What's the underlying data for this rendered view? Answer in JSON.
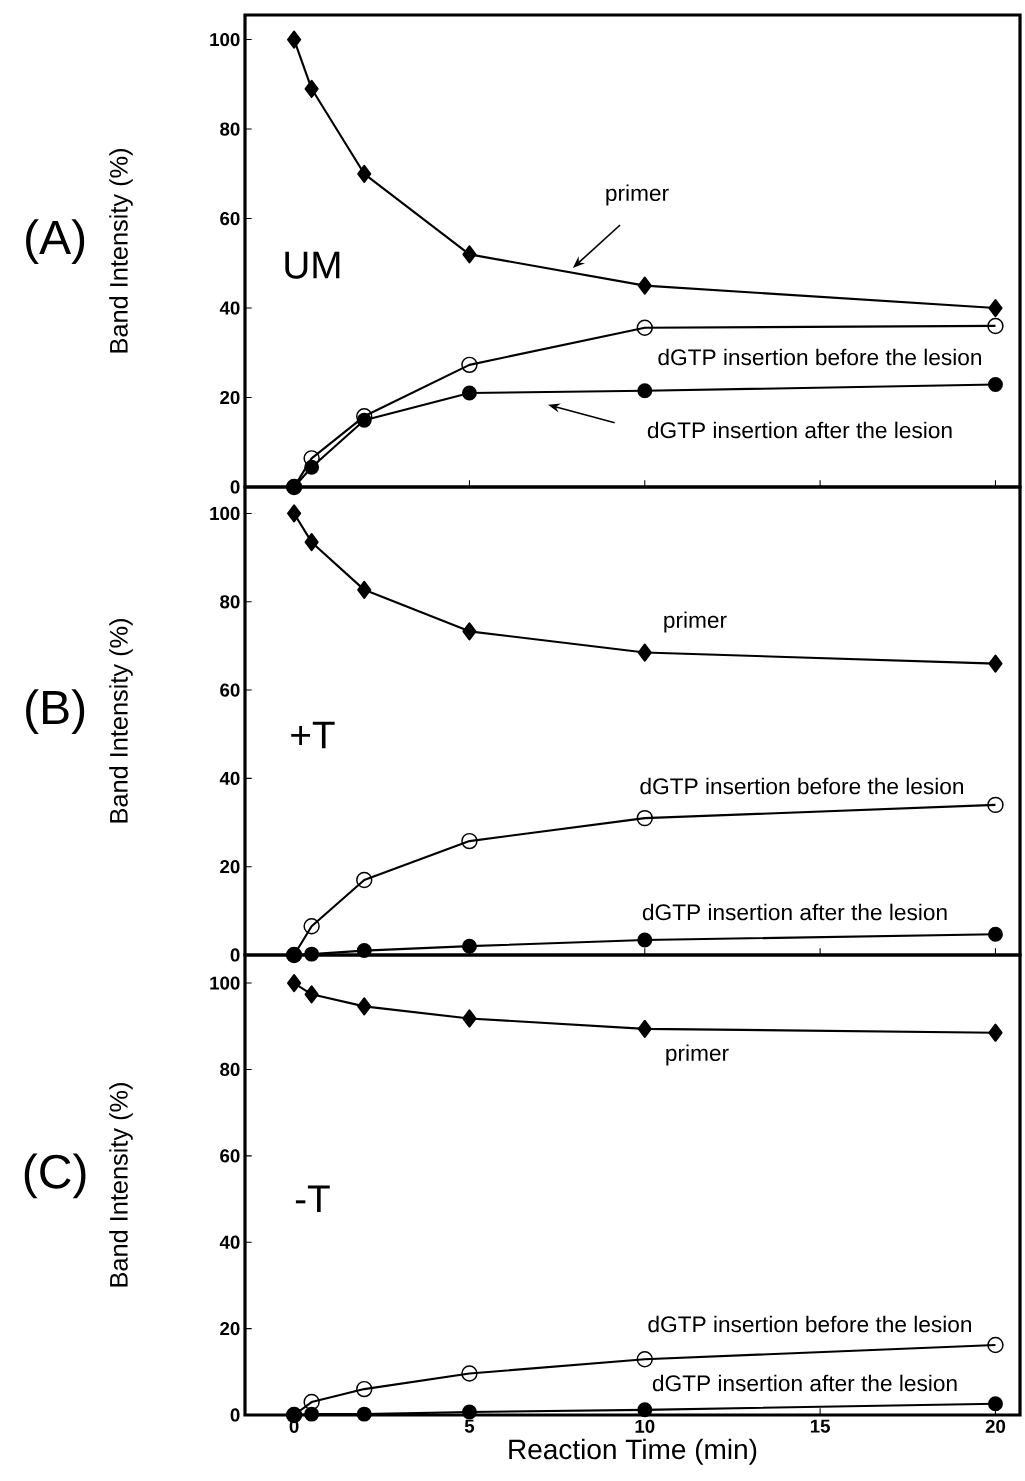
{
  "chart_data": [
    {
      "type": "line",
      "title": "(A)",
      "subtitle": "UM",
      "ylabel": "Band Intensity (%)",
      "xlim": [
        -1.4,
        20.7
      ],
      "ylim": [
        0,
        105.5
      ],
      "xticks": [
        0,
        5,
        10,
        15,
        20
      ],
      "yticks": [
        0,
        20,
        40,
        60,
        80,
        100
      ],
      "tick_labels": "y",
      "series": [
        {
          "color": "#000000",
          "marker": "diamond",
          "x": [
            0,
            0.5,
            2,
            5,
            10,
            20
          ],
          "values": [
            100,
            89,
            70,
            52,
            45,
            40
          ]
        },
        {
          "color": "#000000",
          "marker": "circle",
          "x": [
            0,
            0.5,
            2,
            5,
            10,
            20
          ],
          "values": [
            0,
            6.4,
            15.8,
            27.3,
            35.6,
            36
          ]
        },
        {
          "color": "#000000",
          "marker": "circle",
          "x": [
            0,
            0.5,
            2,
            5,
            10,
            20
          ],
          "values": [
            0,
            4.4,
            14.9,
            21,
            21.5,
            22.9
          ]
        }
      ],
      "annotations": [
        "primer",
        "dGTP insertion before the lesion",
        "dGTP insertion after the lesion"
      ]
    },
    {
      "type": "line",
      "title": "(B)",
      "subtitle": "+T",
      "ylabel": "Band Intensity (%)",
      "xlim": [
        -1.4,
        20.7
      ],
      "ylim": [
        0,
        106
      ],
      "xticks": [
        0,
        5,
        10,
        15,
        20
      ],
      "yticks": [
        0,
        20,
        40,
        60,
        80,
        100
      ],
      "tick_labels": "y",
      "series": [
        {
          "color": "#000000",
          "marker": "diamond",
          "x": [
            0,
            0.5,
            2,
            5,
            10,
            20
          ],
          "values": [
            100,
            93.5,
            82.7,
            73.3,
            68.5,
            66
          ]
        },
        {
          "color": "#000000",
          "marker": "circle",
          "x": [
            0,
            0.5,
            2,
            5,
            10,
            20
          ],
          "values": [
            0,
            6.5,
            17,
            25.8,
            31,
            34
          ]
        },
        {
          "color": "#000000",
          "marker": "circle",
          "x": [
            0,
            0.5,
            2,
            5,
            10,
            20
          ],
          "values": [
            0,
            0.2,
            1,
            2,
            3.4,
            4.7
          ]
        }
      ],
      "annotations": [
        "primer",
        "dGTP insertion before the lesion",
        "dGTP insertion after the lesion"
      ]
    },
    {
      "type": "line",
      "title": "(C)",
      "subtitle": "-T",
      "ylabel": "Band Intensity (%)",
      "xlabel": "Reaction Time (min)",
      "xlim": [
        -1.4,
        20.7
      ],
      "ylim": [
        0,
        106.5
      ],
      "xticks": [
        0,
        5,
        10,
        15,
        20
      ],
      "yticks": [
        0,
        20,
        40,
        60,
        80,
        100
      ],
      "series": [
        {
          "color": "#000000",
          "marker": "diamond",
          "x": [
            0,
            0.5,
            2,
            5,
            10,
            20
          ],
          "values": [
            100,
            97.4,
            94.6,
            91.8,
            89.4,
            88.5
          ]
        },
        {
          "color": "#000000",
          "marker": "circle",
          "x": [
            0,
            0.5,
            2,
            5,
            10,
            20
          ],
          "values": [
            0,
            3,
            6,
            9.6,
            12.9,
            16.2
          ]
        },
        {
          "color": "#000000",
          "marker": "circle",
          "x": [
            0,
            0.5,
            2,
            5,
            10,
            20
          ],
          "values": [
            0,
            0.2,
            0.2,
            0.7,
            1.2,
            2.6
          ]
        }
      ],
      "annotations": [
        "primer",
        "dGTP insertion before the lesion",
        "dGTP insertion after the lesion"
      ]
    }
  ]
}
